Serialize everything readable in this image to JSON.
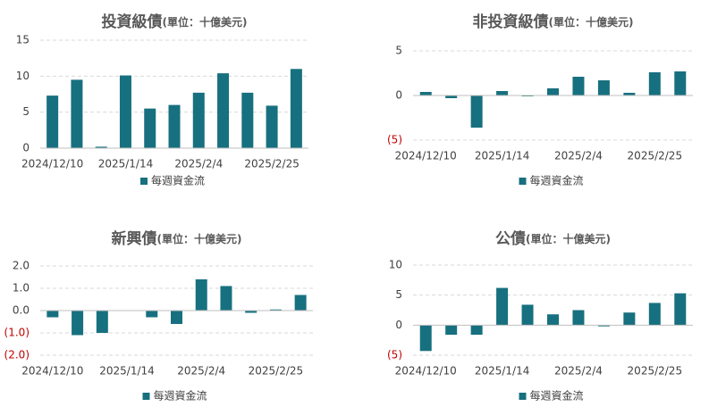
{
  "chart_data": [
    {
      "type": "bar",
      "title": "投資級債",
      "subtitle": "(單位：十億美元)",
      "categories": [
        "2024/12/10",
        null,
        null,
        "2025/1/14",
        null,
        null,
        "2025/2/4",
        null,
        null,
        "2025/2/25",
        null
      ],
      "series": [
        {
          "name": "每週資金流",
          "color": "#17707f",
          "values": [
            7.3,
            9.5,
            0.2,
            10.1,
            5.5,
            6.0,
            7.7,
            10.4,
            7.7,
            5.9,
            11.0
          ]
        }
      ],
      "ylim": [
        0,
        15
      ],
      "yticks": [
        0,
        5,
        10,
        15
      ],
      "grid": true,
      "negative_tick_color": "#c00000"
    },
    {
      "type": "bar",
      "title": "非投資級債",
      "subtitle": "(單位：十億美元)",
      "categories": [
        "2024/12/10",
        null,
        null,
        "2025/1/14",
        null,
        null,
        "2025/2/4",
        null,
        null,
        "2025/2/25",
        null
      ],
      "series": [
        {
          "name": "每週資金流",
          "color": "#17707f",
          "values": [
            0.4,
            -0.3,
            -3.6,
            0.5,
            -0.1,
            0.8,
            2.1,
            1.7,
            0.3,
            2.6,
            2.7
          ]
        }
      ],
      "ylim": [
        -5,
        5
      ],
      "yticks": [
        {
          "value": -5,
          "label": "(5)"
        },
        0,
        5
      ],
      "grid": true,
      "negative_tick_color": "#c00000"
    },
    {
      "type": "bar",
      "title": "新興債",
      "subtitle": "(單位：十億美元)",
      "categories": [
        "2024/12/10",
        null,
        null,
        "2025/1/14",
        null,
        null,
        "2025/2/4",
        null,
        null,
        "2025/2/25",
        null
      ],
      "series": [
        {
          "name": "每週資金流",
          "color": "#17707f",
          "values": [
            -0.3,
            -1.1,
            -1.0,
            0,
            -0.3,
            -0.6,
            1.4,
            1.1,
            -0.1,
            0.05,
            0.7
          ]
        }
      ],
      "ylim": [
        -2,
        2
      ],
      "yticks": [
        {
          "value": -2,
          "label": "(2.0)"
        },
        {
          "value": -1,
          "label": "(1.0)"
        },
        {
          "value": 0,
          "label": "0.0"
        },
        {
          "value": 1,
          "label": "1.0"
        },
        {
          "value": 2,
          "label": "2.0"
        }
      ],
      "grid": true,
      "negative_tick_color": "#c00000"
    },
    {
      "type": "bar",
      "title": "公債",
      "subtitle": "(單位：十億美元)",
      "categories": [
        "2024/12/10",
        null,
        null,
        "2025/1/14",
        null,
        null,
        "2025/2/4",
        null,
        null,
        "2025/2/25",
        null
      ],
      "series": [
        {
          "name": "每週資金流",
          "color": "#17707f",
          "values": [
            -4.3,
            -1.6,
            -1.6,
            6.2,
            3.4,
            1.8,
            2.5,
            -0.2,
            2.1,
            3.7,
            5.3
          ]
        }
      ],
      "ylim": [
        -5,
        10
      ],
      "yticks": [
        {
          "value": -5,
          "label": "(5)"
        },
        0,
        5,
        10
      ],
      "grid": true,
      "negative_tick_color": "#c00000"
    }
  ]
}
